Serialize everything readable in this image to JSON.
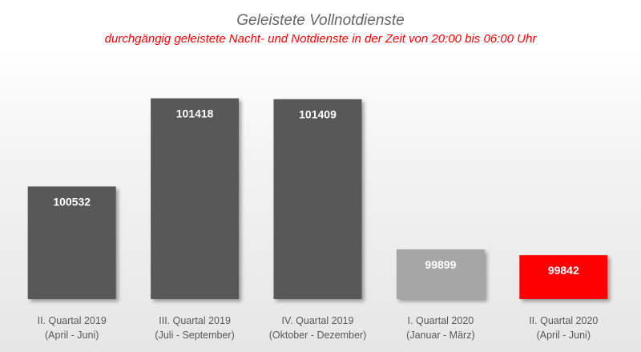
{
  "chart_data": {
    "type": "bar",
    "title": "Geleistete Vollnotdienste",
    "subtitle": "durchgängig geleistete Nacht- und Notdienste in der Zeit von 20:00 bis 06:00 Uhr",
    "categories": [
      [
        "II. Quartal 2019",
        "(April - Juni)"
      ],
      [
        "III. Quartal 2019",
        "(Juli - September)"
      ],
      [
        "IV. Quartal 2019",
        "(Oktober - Dezember)"
      ],
      [
        "I. Quartal 2020",
        "(Januar - März)"
      ],
      [
        "II. Quartal 2020",
        "(April - Juni)"
      ]
    ],
    "values": [
      100532,
      101418,
      101409,
      99899,
      99842
    ],
    "value_labels": [
      "100532",
      "101418",
      "101409",
      "99899",
      "99842"
    ],
    "bar_colors": [
      "#595959",
      "#595959",
      "#595959",
      "#a6a6a6",
      "#ff0000"
    ],
    "ylim": [
      99400,
      101600
    ],
    "grid": false,
    "legend": "none"
  },
  "colors": {
    "title": "#666666",
    "subtitle": "#ff0000",
    "category_text": "#595959",
    "value_text": "#ffffff"
  }
}
